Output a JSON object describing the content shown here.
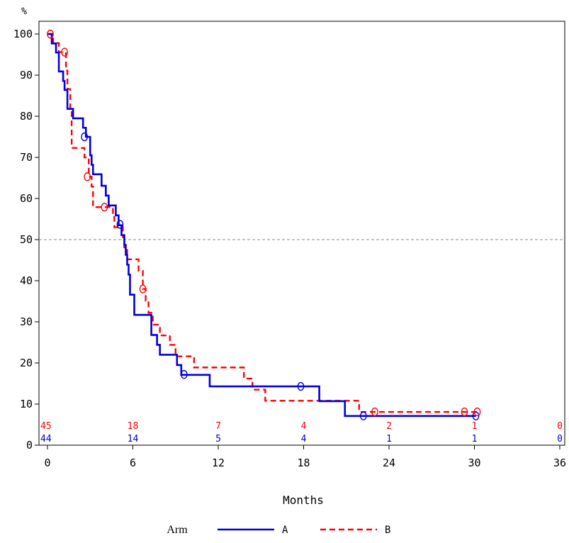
{
  "chart_data": {
    "type": "line",
    "subtype": "kaplan-meier",
    "ylabel": "%",
    "xlabel": "Months",
    "xlim": [
      0,
      36
    ],
    "ylim": [
      0,
      100
    ],
    "xticks": [
      0,
      6,
      12,
      18,
      24,
      30,
      36
    ],
    "yticks": [
      0,
      10,
      20,
      30,
      40,
      50,
      60,
      70,
      80,
      90,
      100
    ],
    "reference_line": {
      "y": 50,
      "style": "dashed",
      "color": "#888888"
    },
    "grid": false,
    "legend": {
      "title": "Arm",
      "position": "bottom"
    },
    "series": [
      {
        "name": "A",
        "color": "#0000dd",
        "line_style": "solid",
        "steps": [
          [
            0,
            100
          ],
          [
            0.3,
            97.7
          ],
          [
            0.6,
            95.5
          ],
          [
            0.8,
            90.9
          ],
          [
            1.1,
            88.6
          ],
          [
            1.2,
            86.4
          ],
          [
            1.4,
            81.8
          ],
          [
            1.8,
            79.5
          ],
          [
            2.5,
            77.2
          ],
          [
            2.7,
            75.0
          ],
          [
            3.0,
            70.5
          ],
          [
            3.1,
            68.2
          ],
          [
            3.2,
            65.9
          ],
          [
            3.8,
            63.1
          ],
          [
            4.1,
            60.7
          ],
          [
            4.3,
            58.3
          ],
          [
            4.8,
            55.9
          ],
          [
            5.0,
            53.5
          ],
          [
            5.2,
            51.1
          ],
          [
            5.4,
            48.7
          ],
          [
            5.5,
            46.3
          ],
          [
            5.6,
            43.9
          ],
          [
            5.7,
            41.5
          ],
          [
            5.8,
            36.6
          ],
          [
            6.1,
            31.7
          ],
          [
            7.3,
            26.8
          ],
          [
            7.7,
            24.4
          ],
          [
            7.9,
            22.0
          ],
          [
            9.1,
            19.5
          ],
          [
            9.4,
            17.1
          ],
          [
            11.4,
            14.3
          ],
          [
            19.1,
            10.7
          ],
          [
            20.9,
            7.1
          ],
          [
            30.1,
            7.1
          ]
        ],
        "censored": [
          [
            2.6,
            75.0
          ],
          [
            5.1,
            53.7
          ],
          [
            9.6,
            17.2
          ],
          [
            17.8,
            14.3
          ],
          [
            22.2,
            7.1
          ],
          [
            30.1,
            7.1
          ]
        ]
      },
      {
        "name": "B",
        "color": "#ff0000",
        "line_style": "dashed",
        "steps": [
          [
            0,
            100
          ],
          [
            0.4,
            97.8
          ],
          [
            0.8,
            95.6
          ],
          [
            1.3,
            91.1
          ],
          [
            1.4,
            86.6
          ],
          [
            1.6,
            82.0
          ],
          [
            1.7,
            72.3
          ],
          [
            2.6,
            70.0
          ],
          [
            2.9,
            65.3
          ],
          [
            3.1,
            62.9
          ],
          [
            3.2,
            57.9
          ],
          [
            3.9,
            57.9
          ],
          [
            4.6,
            55.5
          ],
          [
            4.7,
            53.0
          ],
          [
            5.3,
            50.6
          ],
          [
            5.4,
            48.1
          ],
          [
            5.6,
            45.2
          ],
          [
            6.4,
            42.4
          ],
          [
            6.7,
            38.0
          ],
          [
            6.9,
            35.1
          ],
          [
            7.1,
            32.2
          ],
          [
            7.4,
            29.3
          ],
          [
            7.9,
            26.7
          ],
          [
            8.6,
            24.4
          ],
          [
            9.0,
            21.6
          ],
          [
            10.3,
            18.9
          ],
          [
            13.8,
            16.2
          ],
          [
            14.4,
            13.5
          ],
          [
            15.3,
            10.8
          ],
          [
            21.9,
            8.1
          ],
          [
            30.2,
            8.1
          ]
        ],
        "censored": [
          [
            0.2,
            100
          ],
          [
            1.2,
            95.6
          ],
          [
            2.8,
            65.3
          ],
          [
            4.0,
            57.9
          ],
          [
            6.7,
            38.0
          ],
          [
            23.0,
            8.1
          ],
          [
            29.3,
            8.1
          ],
          [
            30.2,
            8.1
          ]
        ]
      }
    ],
    "at_risk": {
      "times": [
        0,
        6,
        12,
        18,
        24,
        30,
        36
      ],
      "rows": [
        {
          "arm": "B",
          "color": "#ff0000",
          "values": [
            "45",
            "18",
            "7",
            "4",
            "2",
            "1",
            "0"
          ]
        },
        {
          "arm": "A",
          "color": "#0000dd",
          "values": [
            "44",
            "14",
            "5",
            "4",
            "1",
            "1",
            "0"
          ]
        }
      ]
    }
  }
}
